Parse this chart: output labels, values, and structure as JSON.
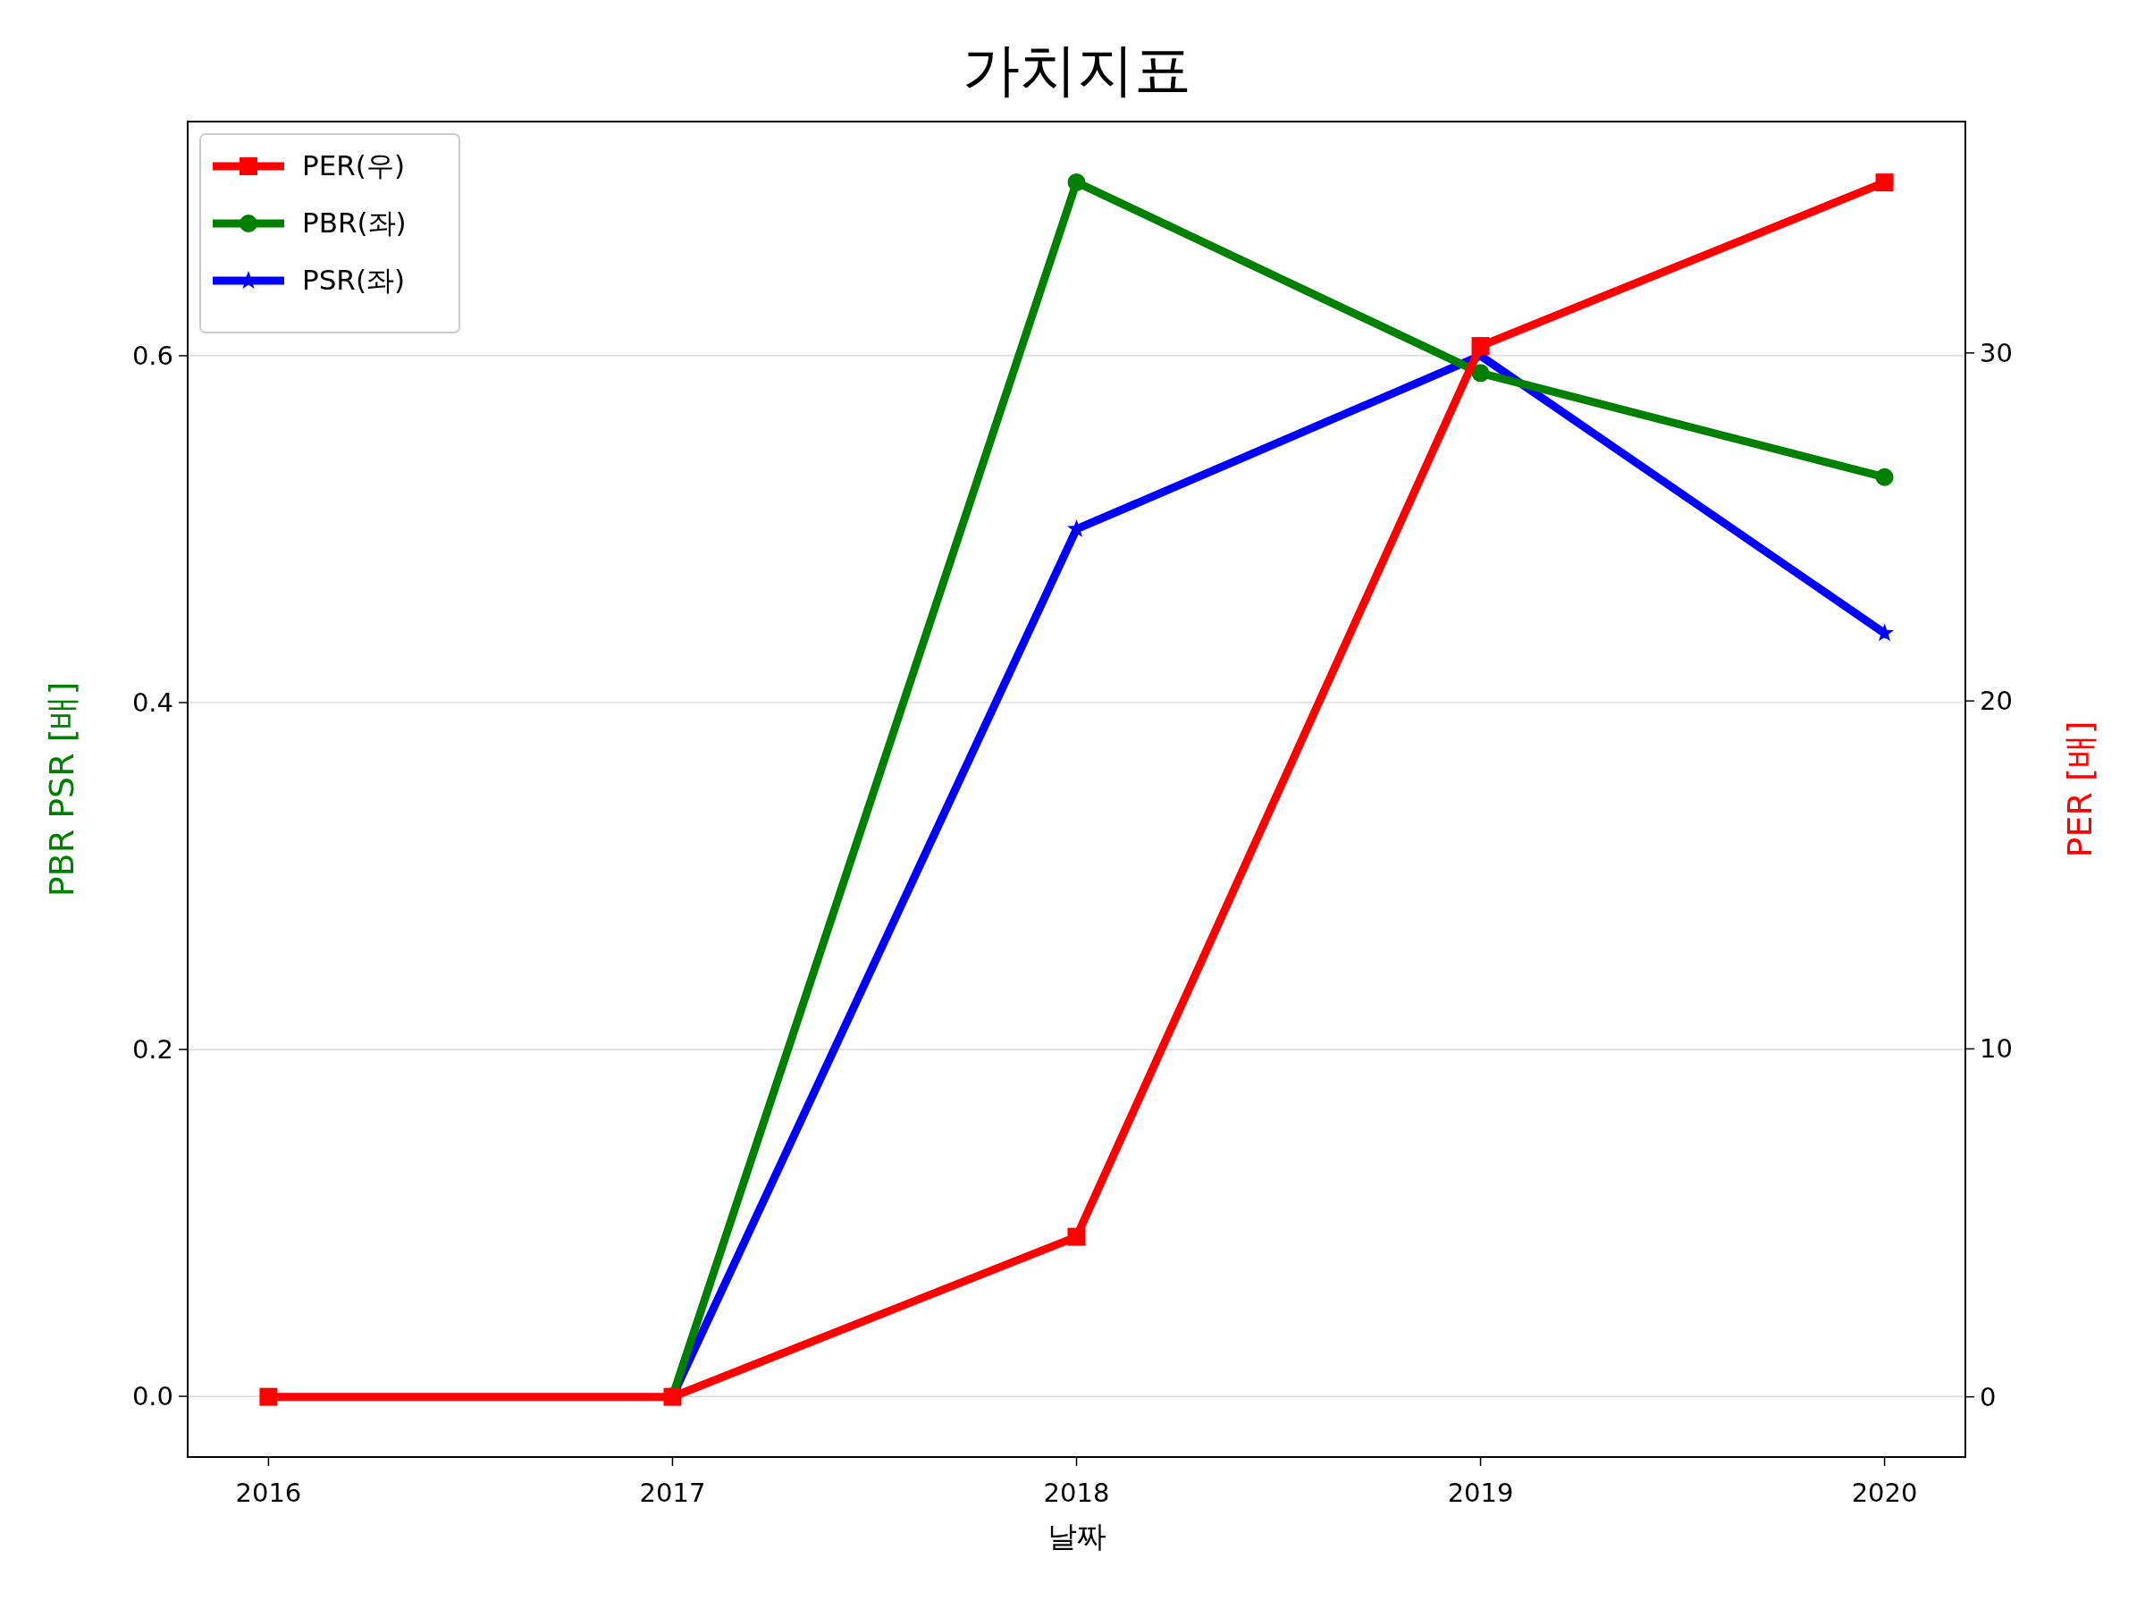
{
  "chart_data": {
    "type": "line",
    "title": "가치지표",
    "xlabel": "날짜",
    "ylabel": "PBR PSR [배]",
    "y2label": "PER [배]",
    "categories": [
      "2016",
      "2017",
      "2018",
      "2019",
      "2020"
    ],
    "series": [
      {
        "name": "PER(우)",
        "color": "#ff0000",
        "marker": "square",
        "axis": "y2",
        "values": [
          0,
          0,
          4.6,
          30.2,
          34.9
        ]
      },
      {
        "name": "PBR(좌)",
        "color": "#008000",
        "marker": "circle",
        "values": [
          null,
          0,
          0.7,
          0.59,
          0.53
        ]
      },
      {
        "name": "PSR(좌)",
        "color": "#0000ff",
        "marker": "star",
        "values": [
          null,
          0,
          0.5,
          0.6,
          0.44
        ]
      }
    ],
    "ylim": [
      -0.035,
      0.735
    ],
    "yticks": [
      {
        "value": 0,
        "label": "0.0"
      },
      0.2,
      0.4,
      0.6
    ],
    "y2lim": [
      -1.73,
      36.65
    ],
    "y2ticks": [
      0,
      10,
      20,
      30
    ],
    "grid": "y",
    "legend": "top left",
    "line_style": "solid"
  }
}
